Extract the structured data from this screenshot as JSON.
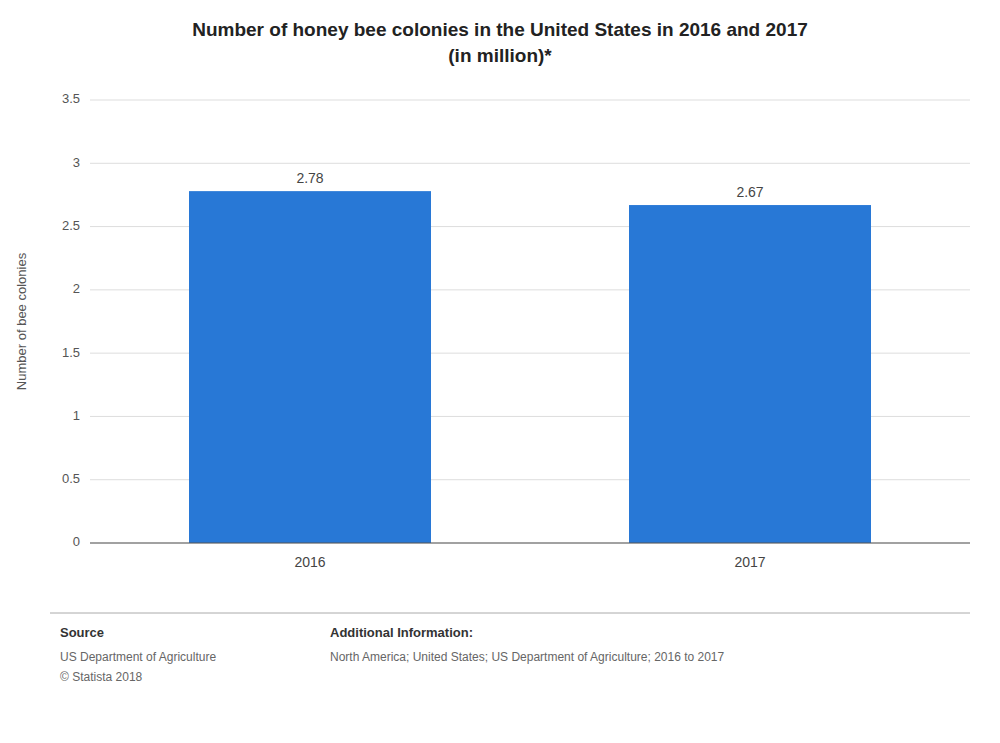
{
  "chart_data": {
    "type": "bar",
    "title": "Number of honey bee colonies in the United States in 2016 and 2017\n(in million)*",
    "categories": [
      "2016",
      "2017"
    ],
    "values": [
      2.78,
      2.67
    ],
    "color": "#2878d6",
    "ylabel": "Number of bee colonies",
    "ylim": [
      0,
      3.5
    ],
    "yticks": [
      0,
      0.5,
      1,
      1.5,
      2,
      2.5,
      3,
      3.5
    ],
    "grid": true,
    "data_labels": true,
    "annotations": [
      "Source",
      "US Department of Agriculture",
      "© Statista 2018",
      "Additional Information:",
      "North America; United States; US Department of Agriculture; 2016 to 2017"
    ]
  }
}
